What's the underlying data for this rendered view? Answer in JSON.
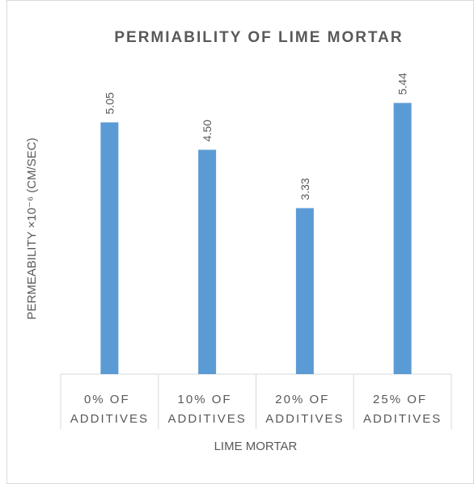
{
  "chart_data": {
    "type": "bar",
    "title": "PERMIABILITY OF LIME MORTAR",
    "x_label": "LIME MORTAR",
    "y_label": "PERMEABILITY ×10⁻⁶ (CM/SEC)",
    "categories": [
      "0% OF ADDITIVES",
      "10% OF ADDITIVES",
      "20% OF ADDITIVES",
      "25% OF ADDITIVES"
    ],
    "values": [
      5.05,
      4.5,
      3.33,
      5.44
    ],
    "value_labels": [
      "5.05",
      "4.50",
      "3.33",
      "5.44"
    ],
    "color": "#5b9bd5",
    "ylim": [
      0,
      6.5
    ]
  }
}
